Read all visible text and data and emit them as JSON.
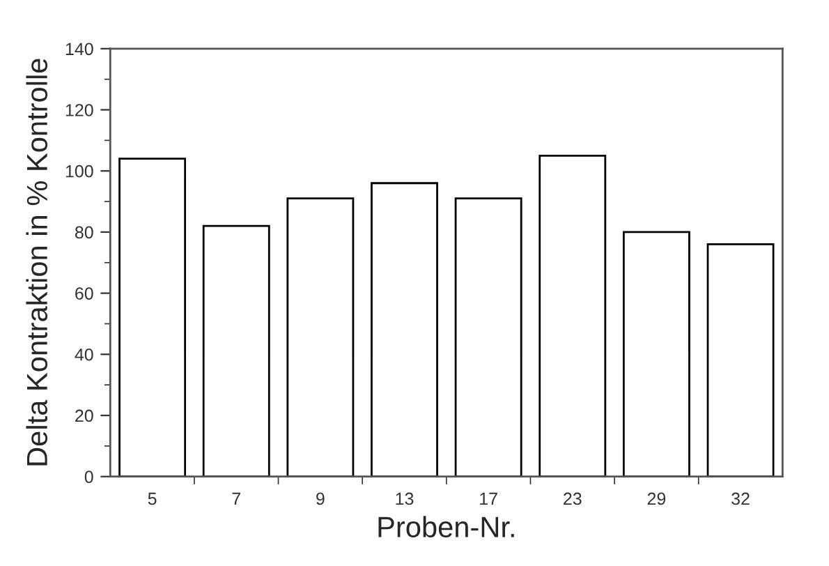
{
  "chart_data": {
    "type": "bar",
    "xlabel": "Proben-Nr.",
    "ylabel": "Delta Kontraktion in % Kontrolle",
    "categories": [
      "5",
      "7",
      "9",
      "13",
      "17",
      "23",
      "29",
      "32"
    ],
    "values": [
      104,
      82,
      91,
      96,
      91,
      105,
      80,
      76
    ],
    "color": "#ffffff",
    "ylim": [
      0,
      140
    ],
    "yticks": [
      0,
      20,
      40,
      60,
      80,
      100,
      120,
      140
    ],
    "grid": false,
    "legend": false
  }
}
